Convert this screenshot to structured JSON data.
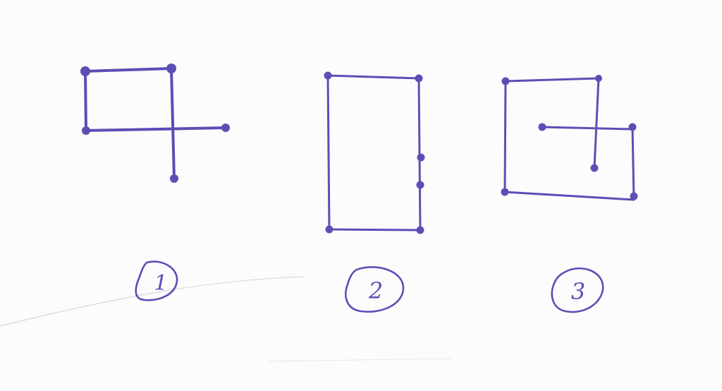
{
  "ink_color": "#5b4fb5",
  "figures": [
    {
      "id": "figure-1",
      "label": "1",
      "dot_count": 5
    },
    {
      "id": "figure-2",
      "label": "2",
      "dot_count": 6
    },
    {
      "id": "figure-3",
      "label": "3",
      "dot_count": 7
    }
  ]
}
